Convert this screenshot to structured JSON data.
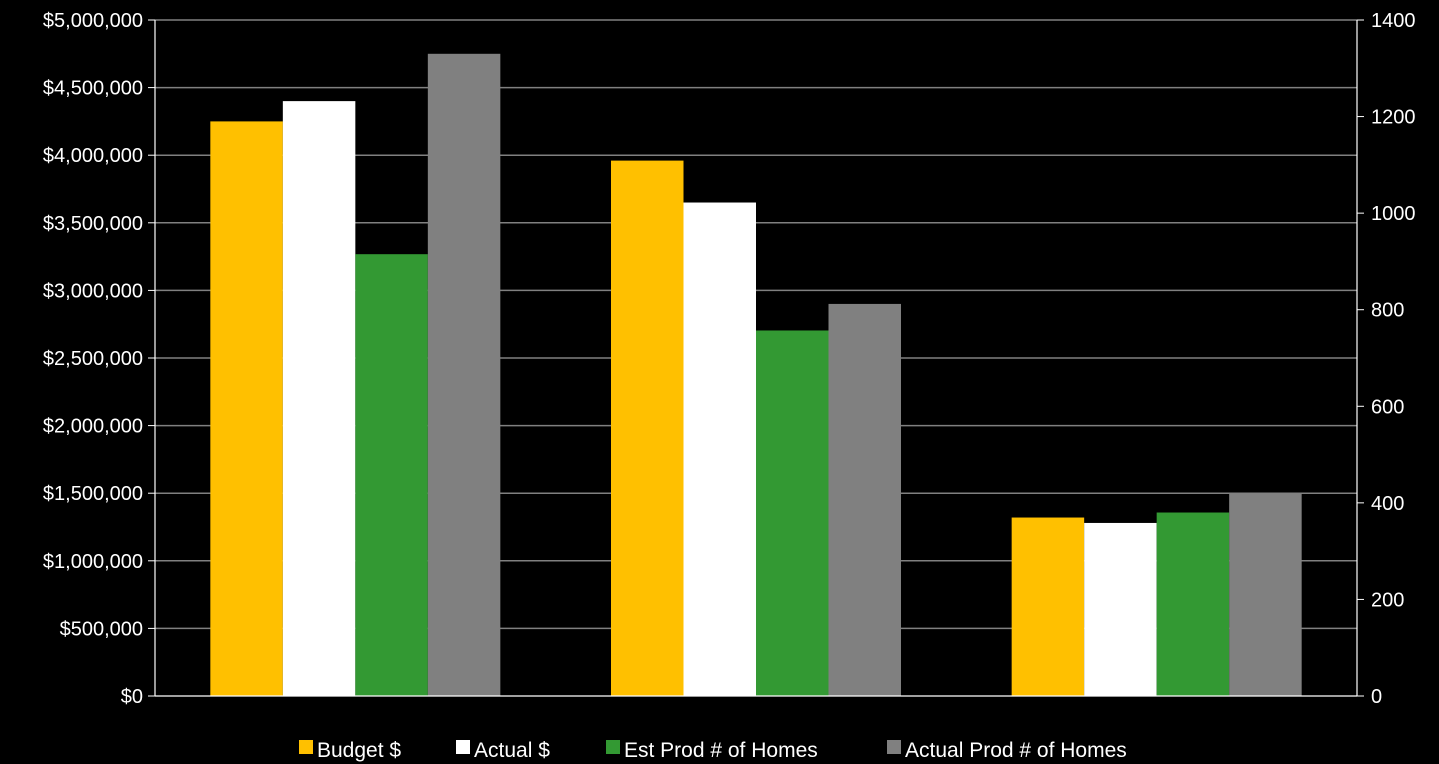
{
  "chart_data": {
    "type": "bar",
    "categories": [
      "",
      "",
      ""
    ],
    "series": [
      {
        "name": "Budget $",
        "axis": "left",
        "color": "#FFC000",
        "values": [
          4250000,
          3960000,
          1320000
        ]
      },
      {
        "name": "Actual $",
        "axis": "left",
        "color": "#FFFFFF",
        "values": [
          4400000,
          3650000,
          1280000
        ]
      },
      {
        "name": "Est Prod # of Homes",
        "axis": "right",
        "color": "#339933",
        "values": [
          915,
          757,
          380
        ]
      },
      {
        "name": "Actual Prod # of Homes",
        "axis": "right",
        "color": "#808080",
        "values": [
          1330,
          812,
          420
        ]
      }
    ],
    "y_left": {
      "ylim": [
        0,
        5000000
      ],
      "ticks": [
        0,
        500000,
        1000000,
        1500000,
        2000000,
        2500000,
        3000000,
        3500000,
        4000000,
        4500000,
        5000000
      ],
      "tick_labels": [
        "$0",
        "$500,000",
        "$1,000,000",
        "$1,500,000",
        "$2,000,000",
        "$2,500,000",
        "$3,000,000",
        "$3,500,000",
        "$4,000,000",
        "$4,500,000",
        "$5,000,000"
      ]
    },
    "y_right": {
      "ylim": [
        0,
        1400
      ],
      "ticks": [
        0,
        200,
        400,
        600,
        800,
        1000,
        1200,
        1400
      ],
      "tick_labels": [
        "0",
        "200",
        "400",
        "600",
        "800",
        "1000",
        "1200",
        "1400"
      ]
    },
    "grid": true,
    "legend": "bottom",
    "colors": {
      "background": "#000000",
      "grid": "#808080",
      "axis": "#ffffff",
      "text": "#ffffff"
    }
  }
}
